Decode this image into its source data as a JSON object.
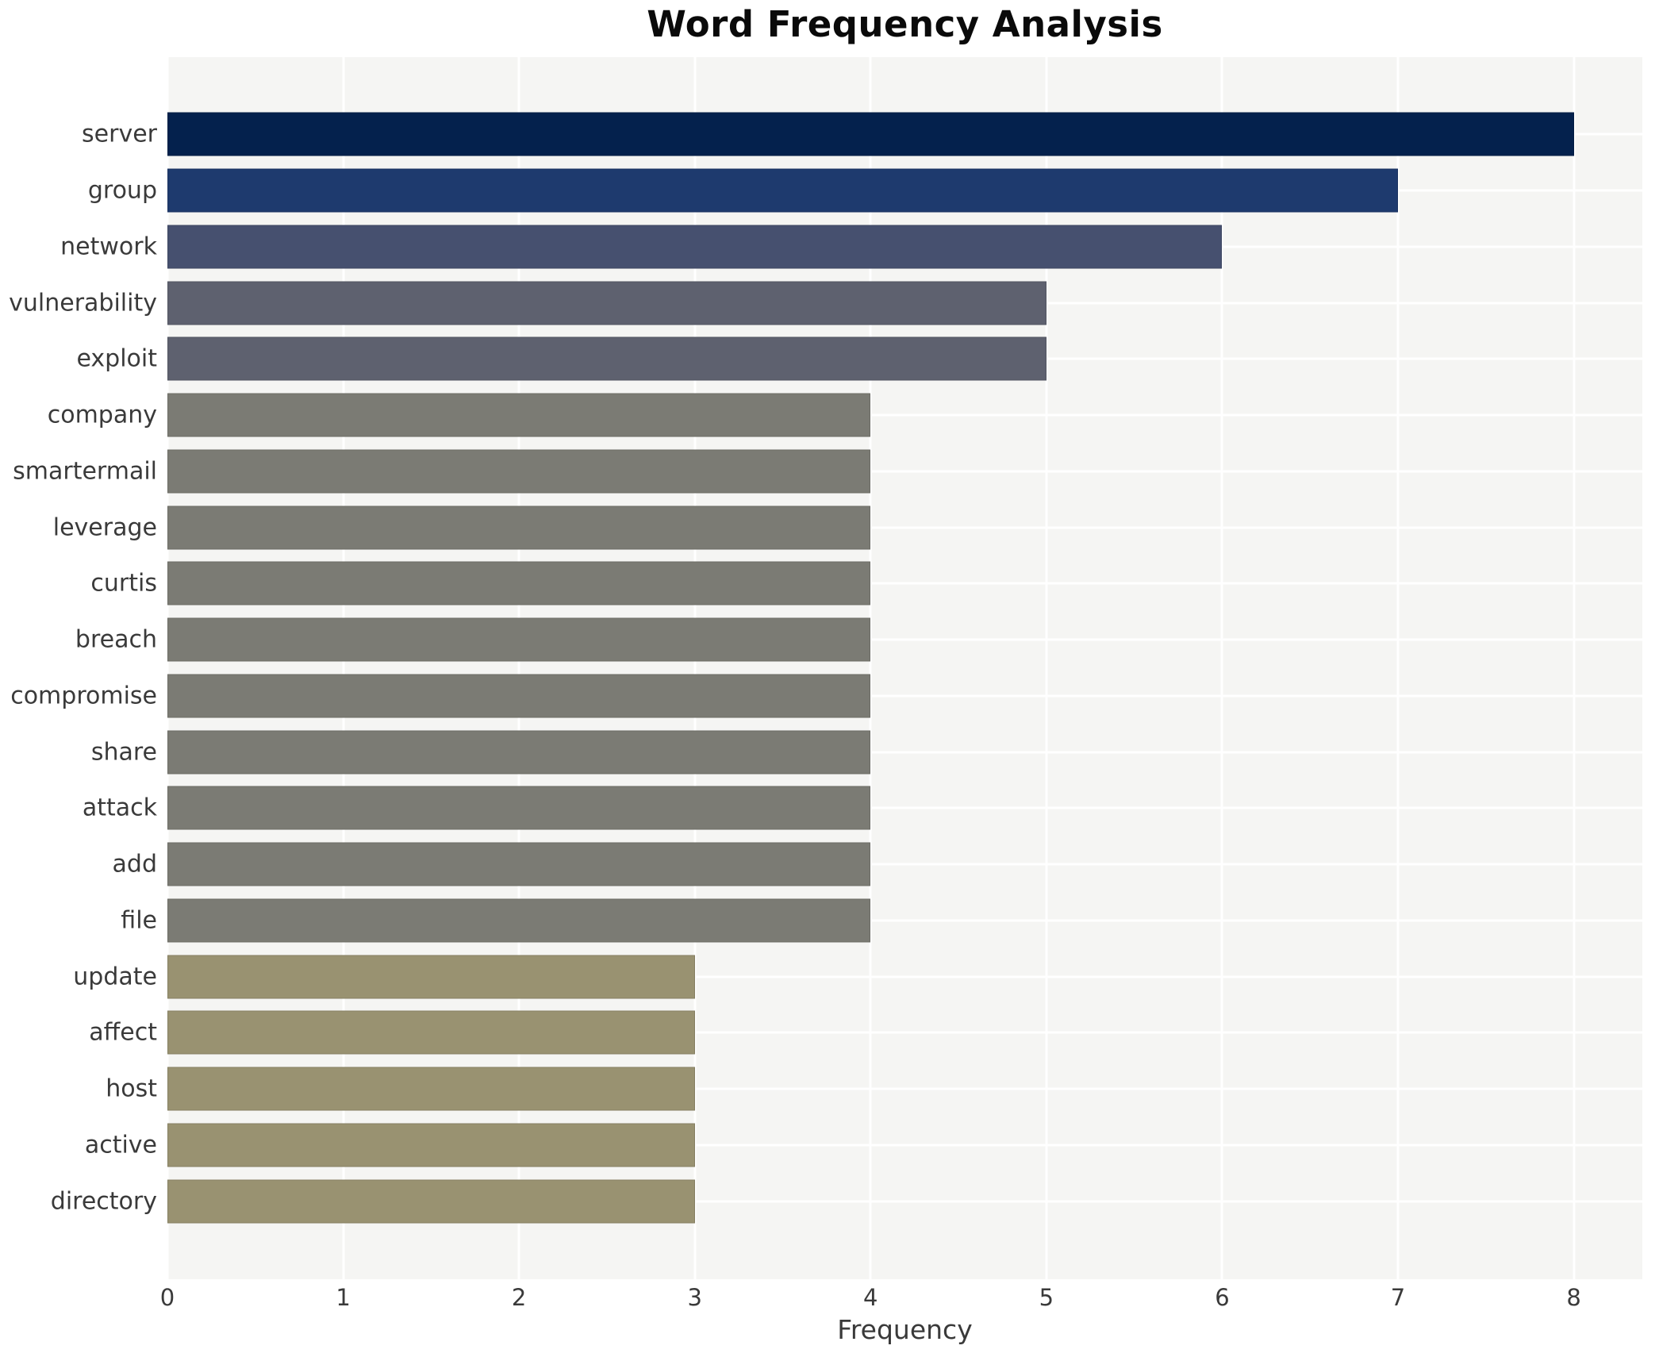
{
  "chart_data": {
    "type": "bar",
    "orientation": "horizontal",
    "title": "Word Frequency Analysis",
    "xlabel": "Frequency",
    "ylabel": "",
    "categories": [
      "server",
      "group",
      "network",
      "vulnerability",
      "exploit",
      "company",
      "smartermail",
      "leverage",
      "curtis",
      "breach",
      "compromise",
      "share",
      "attack",
      "add",
      "file",
      "update",
      "affect",
      "host",
      "active",
      "directory"
    ],
    "values": [
      8,
      7,
      6,
      5,
      5,
      4,
      4,
      4,
      4,
      4,
      4,
      4,
      4,
      4,
      4,
      3,
      3,
      3,
      3,
      3
    ],
    "bar_colors": [
      "#04214d",
      "#1e3a6e",
      "#46506f",
      "#5e616f",
      "#5e616f",
      "#7b7b74",
      "#7b7b74",
      "#7b7b74",
      "#7b7b74",
      "#7b7b74",
      "#7b7b74",
      "#7b7b74",
      "#7b7b74",
      "#7b7b74",
      "#7b7b74",
      "#999271",
      "#999271",
      "#999271",
      "#999271",
      "#999271"
    ],
    "xticks": [
      0,
      1,
      2,
      3,
      4,
      5,
      6,
      7,
      8
    ],
    "xlim": [
      0,
      8.39
    ],
    "grid": true,
    "gridline_color": "#ffffff",
    "legend": "none",
    "plot_background": "#f5f5f3",
    "page_background": "#ffffff",
    "tick_color": "#3a3a3a",
    "title_color": "#0a0a0a"
  }
}
